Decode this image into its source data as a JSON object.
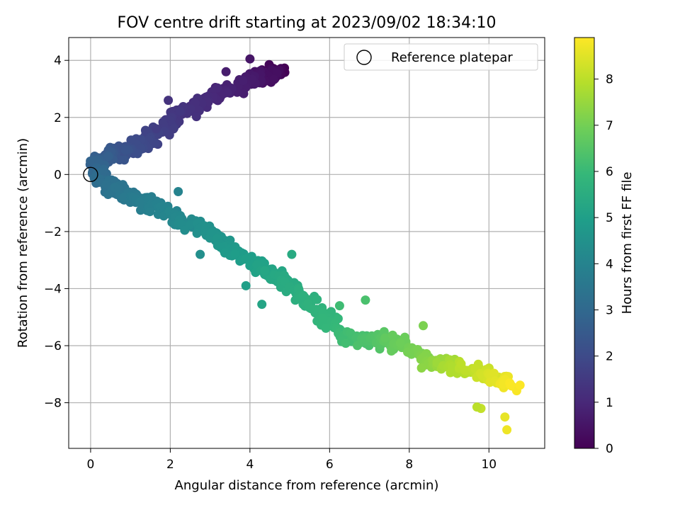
{
  "chart_data": {
    "type": "scatter",
    "title": "FOV centre drift starting at 2023/09/02 18:34:10",
    "xlabel": "Angular distance from reference (arcmin)",
    "ylabel": "Rotation from reference (arcmin)",
    "xlim": [
      -0.55,
      11.4
    ],
    "ylim": [
      -9.6,
      4.8
    ],
    "xticks": [
      0,
      2,
      4,
      6,
      8,
      10
    ],
    "yticks": [
      -8,
      -6,
      -4,
      -2,
      0,
      2,
      4
    ],
    "grid": true,
    "legend": {
      "position": "top-right",
      "entries": [
        {
          "label": "Reference platepar",
          "marker": "open-circle"
        }
      ]
    },
    "colorbar": {
      "label": "Hours from first FF file",
      "min": 0,
      "max": 8.9,
      "ticks": [
        0,
        1,
        2,
        3,
        4,
        5,
        6,
        7,
        8
      ],
      "colormap": "viridis"
    },
    "reference_point": {
      "x": 0,
      "y": 0
    },
    "series": [
      {
        "colormap": "viridis",
        "trajectory": [
          [
            4.75,
            3.65,
            0.0
          ],
          [
            4.5,
            3.5,
            0.3
          ],
          [
            4.0,
            3.3,
            0.6
          ],
          [
            3.3,
            2.9,
            0.9
          ],
          [
            2.6,
            2.4,
            1.2
          ],
          [
            2.0,
            1.8,
            1.5
          ],
          [
            1.5,
            1.2,
            1.8
          ],
          [
            1.0,
            0.9,
            2.1
          ],
          [
            0.5,
            0.7,
            2.4
          ],
          [
            0.15,
            0.45,
            2.7
          ],
          [
            0.15,
            0.0,
            3.0
          ],
          [
            0.5,
            -0.4,
            3.3
          ],
          [
            1.0,
            -0.8,
            3.6
          ],
          [
            1.6,
            -1.1,
            3.9
          ],
          [
            2.3,
            -1.6,
            4.2
          ],
          [
            3.0,
            -2.0,
            4.5
          ],
          [
            3.6,
            -2.7,
            4.8
          ],
          [
            4.3,
            -3.3,
            5.1
          ],
          [
            4.9,
            -3.8,
            5.4
          ],
          [
            5.6,
            -4.6,
            5.7
          ],
          [
            6.3,
            -5.6,
            6.0
          ],
          [
            7.0,
            -5.8,
            6.4
          ],
          [
            7.8,
            -5.9,
            6.8
          ],
          [
            8.5,
            -6.6,
            7.3
          ],
          [
            9.2,
            -6.7,
            7.8
          ],
          [
            10.0,
            -7.0,
            8.3
          ],
          [
            10.6,
            -7.4,
            8.9
          ]
        ],
        "outliers": [
          [
            10.4,
            -8.5,
            8.6
          ],
          [
            10.45,
            -8.95,
            8.7
          ],
          [
            9.8,
            -8.2,
            8.1
          ],
          [
            9.7,
            -8.15,
            8.0
          ],
          [
            8.35,
            -5.3,
            7.1
          ],
          [
            6.9,
            -4.4,
            6.3
          ],
          [
            6.25,
            -4.6,
            6.1
          ],
          [
            5.05,
            -2.8,
            5.4
          ],
          [
            4.3,
            -4.55,
            5.2
          ],
          [
            3.9,
            -3.9,
            5.0
          ],
          [
            2.75,
            -2.8,
            4.4
          ],
          [
            2.2,
            -0.6,
            4.0
          ],
          [
            1.95,
            2.6,
            1.3
          ],
          [
            1.65,
            1.6,
            1.6
          ],
          [
            3.4,
            3.6,
            0.7
          ],
          [
            4.0,
            4.05,
            0.5
          ]
        ]
      }
    ]
  }
}
